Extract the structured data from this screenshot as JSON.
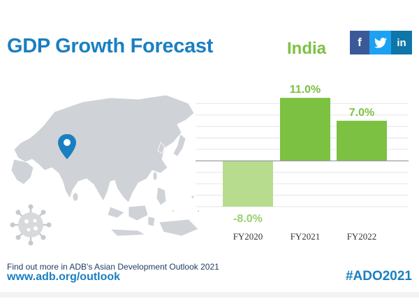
{
  "title": "GDP Growth Forecast",
  "country": "India",
  "social": {
    "facebook_icon": "facebook-icon",
    "twitter_icon": "twitter-icon",
    "linkedin_icon": "linkedin-icon"
  },
  "map": {
    "icon": "location-pin-icon",
    "virus_icon": "virus-icon"
  },
  "footer": {
    "text": "Find out more in ADB's Asian Development Outlook 2021",
    "url": "www.adb.org/outlook",
    "hashtag": "#ADO2021"
  },
  "colors": {
    "brand_blue": "#1a7fc1",
    "green": "#7dc142",
    "green_light": "#b8dc8e",
    "pin": "#1a7fc1",
    "map": "#cfd2d6"
  },
  "chart_data": {
    "type": "bar",
    "title": "",
    "categories": [
      "FY2020",
      "FY2021",
      "FY2022"
    ],
    "values": [
      -8.0,
      11.0,
      7.0
    ],
    "labels": [
      "-8.0%",
      "11.0%",
      "7.0%"
    ],
    "xlabel": "",
    "ylabel": "",
    "ylim": [
      -8.5,
      11.5
    ],
    "grid": true,
    "bar_colors": [
      "#b8dc8e",
      "#7dc142",
      "#7dc142"
    ]
  }
}
